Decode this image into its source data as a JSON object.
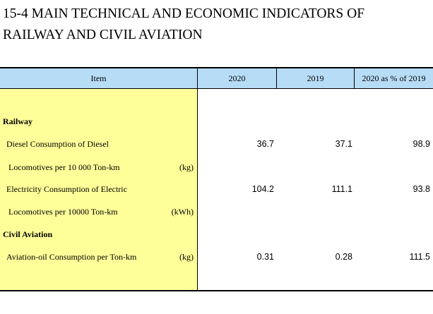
{
  "title": {
    "line1": "15-4  MAIN TECHNICAL AND ECONOMIC INDICATORS OF",
    "line2": "RAILWAY AND CIVIL AVIATION"
  },
  "header": {
    "item": "Item",
    "col2020": "2020",
    "col2019": "2019",
    "pct": "2020 as % of 2019"
  },
  "rows": {
    "railway": {
      "label": "Railway"
    },
    "diesel1": {
      "label": "Diesel Consumption of Diesel",
      "v2020": "36.7",
      "v2019": "37.1",
      "pct": "98.9"
    },
    "diesel2": {
      "label": "Locomotives per 10 000 Ton-km",
      "unit": "(kg)"
    },
    "elec1": {
      "label": "Electricity Consumption of Electric",
      "v2020": "104.2",
      "v2019": "111.1",
      "pct": "93.8"
    },
    "elec2": {
      "label": "Locomotives per 10000 Ton-km",
      "unit": "(kWh)"
    },
    "aviation": {
      "label": "Civil Aviation"
    },
    "oil": {
      "label": "Aviation-oil Consumption per Ton-km",
      "unit": "(kg)",
      "v2020": "0.31",
      "v2019": "0.28",
      "pct": "111.5"
    }
  }
}
